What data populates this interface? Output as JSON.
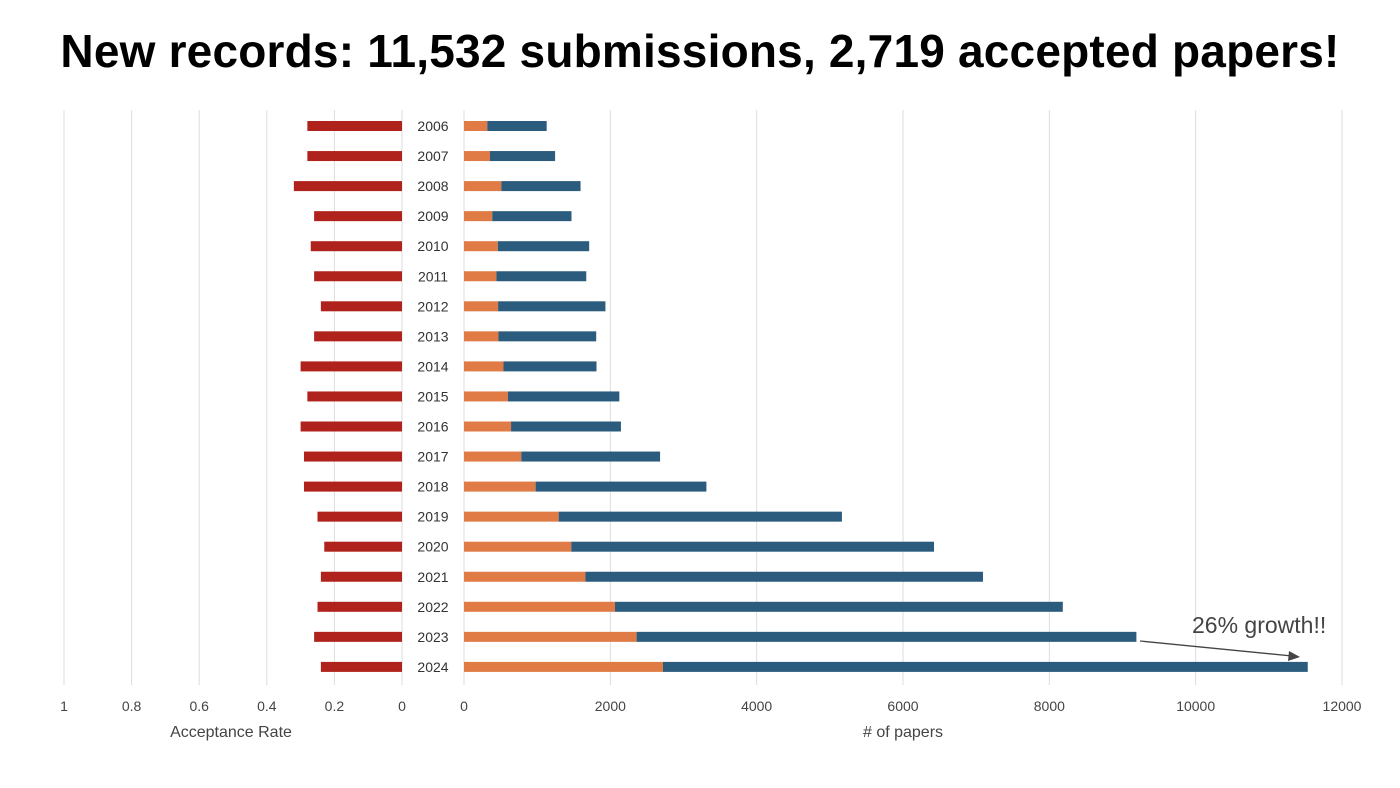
{
  "title": "New records: 11,532 submissions, 2,719 accepted papers!",
  "chart_data": [
    {
      "type": "bar",
      "orientation": "horizontal",
      "direction": "right-to-left",
      "xlabel": "Acceptance Rate",
      "xlim": [
        0,
        1
      ],
      "xticks": [
        "1",
        "0.8",
        "0.6",
        "0.4",
        "0.2",
        "0"
      ],
      "grid": true,
      "categories": [
        "2006",
        "2007",
        "2008",
        "2009",
        "2010",
        "2011",
        "2012",
        "2013",
        "2014",
        "2015",
        "2016",
        "2017",
        "2018",
        "2019",
        "2020",
        "2021",
        "2022",
        "2023",
        "2024"
      ],
      "series": [
        {
          "color": "#b0231c",
          "values": [
            0.28,
            0.28,
            0.32,
            0.26,
            0.27,
            0.26,
            0.24,
            0.26,
            0.3,
            0.28,
            0.3,
            0.29,
            0.29,
            0.25,
            0.23,
            0.24,
            0.25,
            0.26,
            0.24
          ]
        }
      ]
    },
    {
      "type": "bar",
      "orientation": "horizontal",
      "stacked": true,
      "xlabel": "# of papers",
      "xlim": [
        0,
        12000
      ],
      "xticks": [
        "0",
        "2000",
        "4000",
        "6000",
        "8000",
        "10000",
        "12000"
      ],
      "grid": true,
      "categories": [
        "2006",
        "2007",
        "2008",
        "2009",
        "2010",
        "2011",
        "2012",
        "2013",
        "2014",
        "2015",
        "2016",
        "2017",
        "2018",
        "2019",
        "2020",
        "2021",
        "2022",
        "2023",
        "2024"
      ],
      "series": [
        {
          "color": "#e07b45",
          "values": [
            318,
            355,
            510,
            386,
            462,
            443,
            466,
            471,
            540,
            600,
            643,
            783,
            979,
            1294,
            1466,
            1660,
            2064,
            2359,
            2719
          ]
        },
        {
          "color": "#2b5c7d",
          "values": [
            812,
            890,
            1083,
            1083,
            1249,
            1228,
            1467,
            1336,
            1271,
            1523,
            1502,
            1897,
            2334,
            3871,
            4958,
            5433,
            6120,
            6831,
            8813
          ]
        }
      ],
      "totals": [
        1130,
        1245,
        1593,
        1469,
        1711,
        1671,
        1933,
        1807,
        1811,
        2123,
        2145,
        2680,
        3313,
        5165,
        6424,
        7093,
        8184,
        9190,
        11532
      ]
    }
  ],
  "annotation": {
    "text": "26% growth!!"
  }
}
